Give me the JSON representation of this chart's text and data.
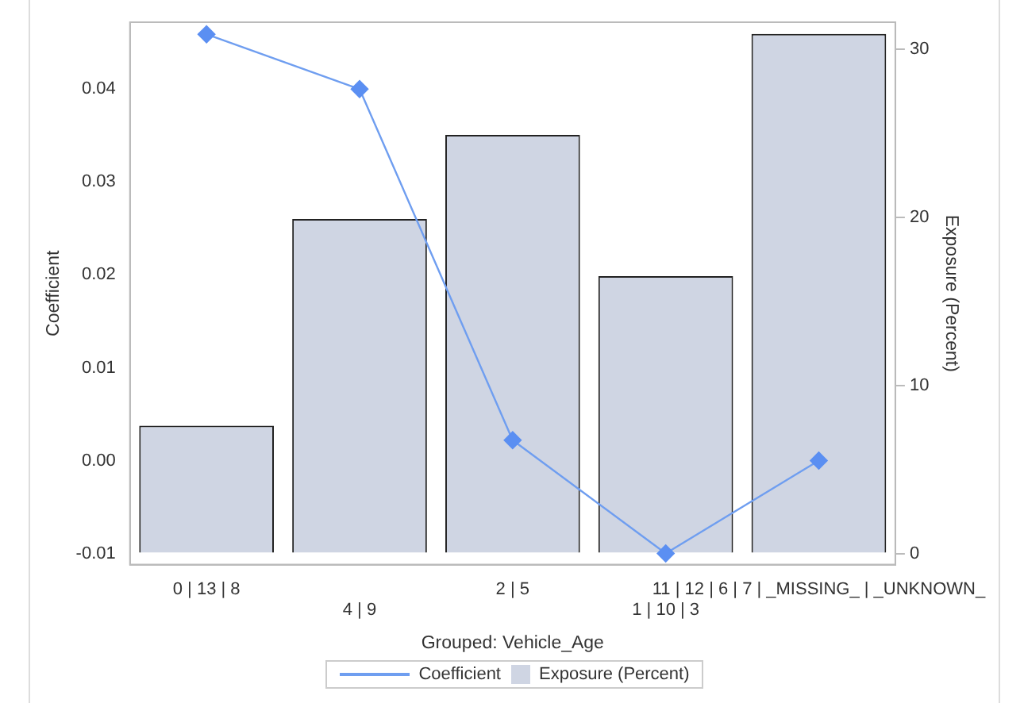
{
  "chart_data": {
    "type": "bar",
    "xlabel": "Grouped: Vehicle_Age",
    "ylabel": "Coefficient",
    "y2label": "Exposure (Percent)",
    "categories": [
      "0 | 13 | 8",
      "4 | 9",
      "2 | 5",
      "1 | 10 | 3",
      "11 | 12 | 6 | 7 | _MISSING_ | _UNKNOWN_"
    ],
    "series": [
      {
        "name": "Coefficient",
        "type": "line",
        "color": "#6f9ef0",
        "values": [
          0.0459,
          0.04,
          0.0022,
          -0.01,
          0.0
        ],
        "marker": "diamond"
      },
      {
        "name": "Exposure (Percent)",
        "axis": "y2",
        "color": "#cfd5e3",
        "values": [
          7.6,
          19.9,
          24.9,
          16.5,
          30.9
        ]
      }
    ],
    "ylim": [
      -0.0112,
      0.0472
    ],
    "yticks": [
      {
        "value": -0.01,
        "label": "-0.01"
      },
      {
        "value": 0,
        "label": "0.00"
      },
      {
        "value": 0.01,
        "label": "0.01"
      },
      {
        "value": 0.02,
        "label": "0.02"
      },
      {
        "value": 0.03,
        "label": "0.03"
      },
      {
        "value": 0.04,
        "label": "0.04"
      }
    ],
    "y2lim": [
      -0.66,
      31.6
    ],
    "y2ticks": [
      0,
      10,
      20,
      30
    ],
    "grid": false,
    "legend": "bottom"
  }
}
